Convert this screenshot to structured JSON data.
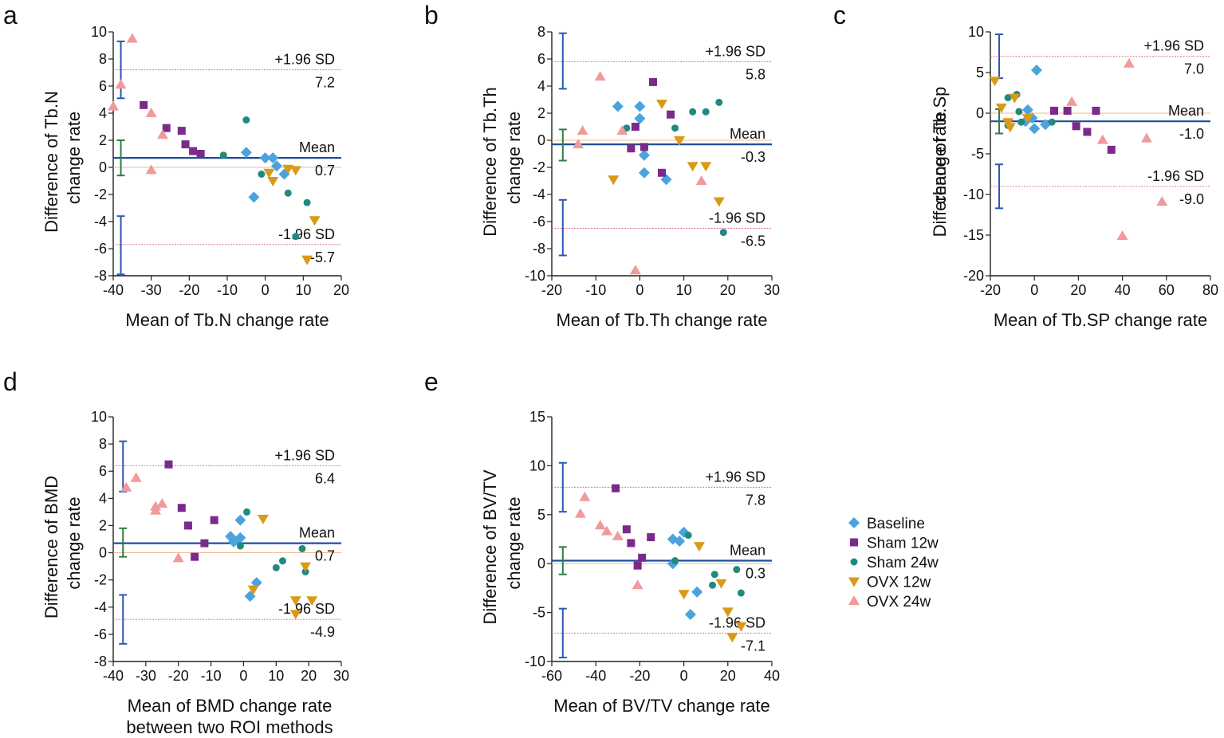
{
  "chart_data": [
    {
      "panel": "a",
      "type": "scatter",
      "title": "",
      "xlabel": "Mean of Tb.N change rate",
      "xlabel2": "",
      "ylabel": "Difference of Tb.N",
      "ylabel2": "change rate",
      "xlim": [
        -40,
        20
      ],
      "ylim": [
        -8,
        10
      ],
      "xticks": [
        -40,
        -30,
        -20,
        -10,
        0,
        10,
        20
      ],
      "yticks": [
        -8,
        -6,
        -4,
        -2,
        0,
        2,
        4,
        6,
        8,
        10
      ],
      "xtick_labels": [
        "-40",
        "-30",
        "-20",
        "-10",
        "0",
        "10",
        "20"
      ],
      "ytick_labels": [
        "-8",
        "-6",
        "-4",
        "-2",
        "0",
        "2",
        "4",
        "6",
        "8",
        "10"
      ],
      "upper": 7.2,
      "mean": 0.7,
      "lower": -5.7,
      "upper_label": "+1.96 SD",
      "mean_label": "Mean",
      "lower_label": "-1.96 SD",
      "upper_value": "7.2",
      "mean_value": "0.7",
      "lower_value": "-5.7",
      "ci_x": -38,
      "ci_upper": [
        5.1,
        9.3
      ],
      "ci_mean": [
        -0.6,
        2.0
      ],
      "ci_lower": [
        -7.9,
        -3.6
      ],
      "series": [
        {
          "name": "Baseline",
          "points": [
            [
              -5,
              1.1
            ],
            [
              -3,
              -2.2
            ],
            [
              0,
              0.7
            ],
            [
              2,
              0.7
            ],
            [
              3,
              0.1
            ],
            [
              5,
              -0.5
            ]
          ]
        },
        {
          "name": "Sham 12w",
          "points": [
            [
              -32,
              4.6
            ],
            [
              -26,
              2.9
            ],
            [
              -22,
              2.7
            ],
            [
              -21,
              1.7
            ],
            [
              -19,
              1.2
            ],
            [
              -17,
              1.0
            ]
          ]
        },
        {
          "name": "Sham 24w",
          "points": [
            [
              -11,
              0.9
            ],
            [
              -5,
              3.5
            ],
            [
              -1,
              -0.5
            ],
            [
              6,
              -1.9
            ],
            [
              8,
              -5.1
            ],
            [
              11,
              -2.6
            ]
          ]
        },
        {
          "name": "OVX  12w",
          "points": [
            [
              1,
              -0.4
            ],
            [
              2,
              -1.0
            ],
            [
              6,
              -0.1
            ],
            [
              8,
              -0.2
            ],
            [
              11,
              -6.8
            ],
            [
              13,
              -3.9
            ]
          ]
        },
        {
          "name": "OVX  24w",
          "points": [
            [
              -38,
              6.1
            ],
            [
              -35,
              9.5
            ],
            [
              -40,
              4.5
            ],
            [
              -30,
              4.0
            ],
            [
              -27,
              2.4
            ],
            [
              -30,
              -0.2
            ]
          ]
        }
      ]
    },
    {
      "panel": "b",
      "type": "scatter",
      "title": "",
      "xlabel": "Mean of Tb.Th change rate",
      "xlabel2": "",
      "ylabel": "Difference of Tb.Th",
      "ylabel2": "change  rate",
      "xlim": [
        -20,
        30
      ],
      "ylim": [
        -10,
        8
      ],
      "xticks": [
        -20,
        -10,
        0,
        10,
        20,
        30
      ],
      "yticks": [
        -10,
        -8,
        -6,
        -4,
        -2,
        0,
        2,
        4,
        6,
        8
      ],
      "xtick_labels": [
        "-20",
        "-10",
        "0",
        "10",
        "20",
        "30"
      ],
      "ytick_labels": [
        "-10",
        "-8",
        "-6",
        "-4",
        "-2",
        "0",
        "2",
        "4",
        "6",
        "8"
      ],
      "upper": 5.8,
      "mean": -0.3,
      "lower": -6.5,
      "upper_label": "+1.96 SD",
      "mean_label": "Mean",
      "lower_label": "-1.96 SD",
      "upper_value": "5.8",
      "mean_value": "-0.3",
      "lower_value": "-6.5",
      "ci_x": -17.5,
      "ci_upper": [
        3.8,
        7.9
      ],
      "ci_mean": [
        -1.5,
        0.8
      ],
      "ci_lower": [
        -8.5,
        -4.4
      ],
      "series": [
        {
          "name": "Baseline",
          "points": [
            [
              -5,
              2.5
            ],
            [
              0,
              2.5
            ],
            [
              0,
              1.6
            ],
            [
              1,
              -1.1
            ],
            [
              1,
              -2.4
            ],
            [
              6,
              -2.9
            ]
          ]
        },
        {
          "name": "Sham 12w",
          "points": [
            [
              -2,
              -0.6
            ],
            [
              -1,
              1.0
            ],
            [
              1,
              -0.5
            ],
            [
              3,
              4.3
            ],
            [
              5,
              -2.4
            ],
            [
              7,
              1.9
            ]
          ]
        },
        {
          "name": "Sham 24w",
          "points": [
            [
              -3,
              0.9
            ],
            [
              8,
              0.9
            ],
            [
              12,
              2.1
            ],
            [
              15,
              2.1
            ],
            [
              18,
              2.8
            ],
            [
              19,
              -6.8
            ]
          ]
        },
        {
          "name": "OVX  12w",
          "points": [
            [
              -6,
              -2.9
            ],
            [
              5,
              2.7
            ],
            [
              9,
              0.0
            ],
            [
              12,
              -1.9
            ],
            [
              15,
              -1.9
            ],
            [
              18,
              -4.5
            ]
          ]
        },
        {
          "name": "OVX  24w",
          "points": [
            [
              -13,
              0.7
            ],
            [
              -14,
              -0.3
            ],
            [
              -9,
              4.7
            ],
            [
              -4,
              0.7
            ],
            [
              14,
              -3.0
            ],
            [
              -1,
              -9.6
            ]
          ]
        }
      ]
    },
    {
      "panel": "c",
      "type": "scatter",
      "title": "",
      "xlabel": "Mean of Tb.SP change rate",
      "xlabel2": "",
      "ylabel": "Difference of Tb.Sp",
      "ylabel2": "change  rate",
      "xlim": [
        -20,
        80
      ],
      "ylim": [
        -20,
        10
      ],
      "xticks": [
        -20,
        0,
        20,
        40,
        60,
        80
      ],
      "yticks": [
        -20,
        -15,
        -10,
        -5,
        0,
        5,
        10
      ],
      "xtick_labels": [
        "-20",
        "0",
        "20",
        "40",
        "60",
        "80"
      ],
      "ytick_labels": [
        "-20",
        "-15",
        "-10",
        "-5",
        "0",
        "5",
        "10"
      ],
      "upper": 7.0,
      "mean": -1.0,
      "lower": -9.0,
      "upper_label": "+1.96 SD",
      "mean_label": "Mean",
      "lower_label": "-1.96 SD",
      "upper_value": "7.0",
      "mean_value": "-1.0",
      "lower_value": "-9.0",
      "ci_x": -16,
      "ci_upper": [
        4.3,
        9.7
      ],
      "ci_mean": [
        -2.5,
        0.5
      ],
      "ci_lower": [
        -11.7,
        -6.3
      ],
      "series": [
        {
          "name": "Baseline",
          "points": [
            [
              -4,
              -1.0
            ],
            [
              -3,
              0.4
            ],
            [
              -1,
              -0.6
            ],
            [
              0,
              -1.9
            ],
            [
              1,
              5.3
            ],
            [
              5,
              -1.4
            ]
          ]
        },
        {
          "name": "Sham 12w",
          "points": [
            [
              9,
              0.3
            ],
            [
              15,
              0.3
            ],
            [
              19,
              -1.6
            ],
            [
              24,
              -2.3
            ],
            [
              28,
              0.3
            ],
            [
              35,
              -4.5
            ]
          ]
        },
        {
          "name": "Sham 24w",
          "points": [
            [
              -12,
              -1.5
            ],
            [
              -12,
              1.9
            ],
            [
              -8,
              2.3
            ],
            [
              -7,
              0.2
            ],
            [
              -6,
              -1.1
            ],
            [
              8,
              -1.1
            ]
          ]
        },
        {
          "name": "OVX  12w",
          "points": [
            [
              -18,
              4.0
            ],
            [
              -15,
              0.7
            ],
            [
              -12,
              -1.1
            ],
            [
              -11,
              -1.7
            ],
            [
              -9,
              1.9
            ],
            [
              -3,
              -0.6
            ]
          ]
        },
        {
          "name": "OVX  24w",
          "points": [
            [
              17,
              1.4
            ],
            [
              31,
              -3.3
            ],
            [
              40,
              -15.1
            ],
            [
              43,
              6.1
            ],
            [
              51,
              -3.1
            ],
            [
              58,
              -10.9
            ]
          ]
        }
      ]
    },
    {
      "panel": "d",
      "type": "scatter",
      "title": "",
      "xlabel": "Mean of BMD change rate",
      "xlabel2": "between two ROI methods",
      "ylabel": "Difference of BMD",
      "ylabel2": "change rate",
      "xlim": [
        -40,
        30
      ],
      "ylim": [
        -8,
        10
      ],
      "xticks": [
        -40,
        -30,
        -20,
        -10,
        0,
        10,
        20,
        30
      ],
      "yticks": [
        -8,
        -6,
        -4,
        -2,
        0,
        2,
        4,
        6,
        8,
        10
      ],
      "xtick_labels": [
        "-40",
        "-30",
        "-20",
        "-10",
        "0",
        "10",
        "20",
        "30"
      ],
      "ytick_labels": [
        "-8",
        "-6",
        "-4",
        "-2",
        "0",
        "2",
        "4",
        "6",
        "8",
        "10"
      ],
      "upper": 6.4,
      "mean": 0.7,
      "lower": -4.9,
      "upper_label": "+1.96 SD",
      "mean_label": "Mean",
      "lower_label": "-1.96 SD",
      "upper_value": "6.4",
      "mean_value": "0.7",
      "lower_value": "-4.9",
      "ci_x": -37,
      "ci_upper": [
        4.5,
        8.2
      ],
      "ci_mean": [
        -0.3,
        1.8
      ],
      "ci_lower": [
        -6.7,
        -3.1
      ],
      "series": [
        {
          "name": "Baseline",
          "points": [
            [
              -4,
              1.2
            ],
            [
              -3,
              0.8
            ],
            [
              -1,
              1.1
            ],
            [
              -1,
              2.4
            ],
            [
              2,
              -3.2
            ],
            [
              4,
              -2.2
            ]
          ]
        },
        {
          "name": "Sham 12w",
          "points": [
            [
              -23,
              6.5
            ],
            [
              -19,
              3.3
            ],
            [
              -17,
              2.0
            ],
            [
              -12,
              0.7
            ],
            [
              -9,
              2.4
            ],
            [
              -15,
              -0.3
            ]
          ]
        },
        {
          "name": "Sham 24w",
          "points": [
            [
              -1,
              0.5
            ],
            [
              1,
              3.0
            ],
            [
              10,
              -1.1
            ],
            [
              12,
              -0.6
            ],
            [
              18,
              0.3
            ],
            [
              19,
              -1.4
            ]
          ]
        },
        {
          "name": "OVX  12w",
          "points": [
            [
              3,
              -2.7
            ],
            [
              6,
              2.5
            ],
            [
              16,
              -3.5
            ],
            [
              16,
              -4.5
            ],
            [
              19,
              -1.0
            ],
            [
              21,
              -3.5
            ]
          ]
        },
        {
          "name": "OVX  24w",
          "points": [
            [
              -36,
              4.8
            ],
            [
              -33,
              5.5
            ],
            [
              -27,
              3.4
            ],
            [
              -27,
              3.1
            ],
            [
              -25,
              3.6
            ],
            [
              -20,
              -0.4
            ]
          ]
        }
      ]
    },
    {
      "panel": "e",
      "type": "scatter",
      "title": "",
      "xlabel": "Mean of BV/TV change rate",
      "xlabel2": "",
      "ylabel": "Difference of BV/TV",
      "ylabel2": "change  rate",
      "xlim": [
        -60,
        40
      ],
      "ylim": [
        -10,
        15
      ],
      "xticks": [
        -60,
        -40,
        -20,
        0,
        20,
        40
      ],
      "yticks": [
        -10,
        -5,
        0,
        5,
        10,
        15
      ],
      "xtick_labels": [
        "-60",
        "-40",
        "-20",
        "0",
        "20",
        "40"
      ],
      "ytick_labels": [
        "-10",
        "-5",
        "0",
        "5",
        "10",
        "15"
      ],
      "upper": 7.8,
      "mean": 0.3,
      "lower": -7.1,
      "upper_label": "+1.96 SD",
      "mean_label": "Mean",
      "lower_label": "-1.96 SD",
      "upper_value": "7.8",
      "mean_value": "0.3",
      "lower_value": "-7.1",
      "ci_x": -55,
      "ci_upper": [
        5.3,
        10.3
      ],
      "ci_mean": [
        -1.1,
        1.7
      ],
      "ci_lower": [
        -9.6,
        -4.6
      ],
      "series": [
        {
          "name": "Baseline",
          "points": [
            [
              -5,
              2.5
            ],
            [
              -5,
              0.0
            ],
            [
              -2,
              2.3
            ],
            [
              0,
              3.2
            ],
            [
              3,
              -5.2
            ],
            [
              6,
              -2.9
            ]
          ]
        },
        {
          "name": "Sham 12w",
          "points": [
            [
              -31,
              7.7
            ],
            [
              -26,
              3.5
            ],
            [
              -24,
              2.1
            ],
            [
              -15,
              2.7
            ],
            [
              -19,
              0.6
            ],
            [
              -21,
              -0.2
            ]
          ]
        },
        {
          "name": "Sham 24w",
          "points": [
            [
              -4,
              0.3
            ],
            [
              2,
              2.9
            ],
            [
              14,
              -1.1
            ],
            [
              13,
              -2.2
            ],
            [
              24,
              -0.6
            ],
            [
              26,
              -3.0
            ]
          ]
        },
        {
          "name": "OVX  12w",
          "points": [
            [
              0,
              -3.1
            ],
            [
              7,
              1.8
            ],
            [
              17,
              -2.0
            ],
            [
              20,
              -4.9
            ],
            [
              22,
              -7.5
            ],
            [
              26,
              -6.4
            ]
          ]
        },
        {
          "name": "OVX  24w",
          "points": [
            [
              -47,
              5.1
            ],
            [
              -45,
              6.8
            ],
            [
              -38,
              3.9
            ],
            [
              -35,
              3.3
            ],
            [
              -30,
              2.8
            ],
            [
              -21,
              -2.2
            ]
          ]
        }
      ]
    }
  ],
  "panel_labels": [
    "a",
    "b",
    "c",
    "d",
    "e"
  ],
  "legend": [
    {
      "name": "Baseline",
      "marker": "diamond",
      "color": "#4aa3dd"
    },
    {
      "name": "Sham 12w",
      "marker": "square",
      "color": "#7b2a8c"
    },
    {
      "name": "Sham 24w",
      "marker": "circle",
      "color": "#1f8a80"
    },
    {
      "name": "OVX  12w",
      "marker": "triangle-down",
      "color": "#d89a18"
    },
    {
      "name": "OVX  24w",
      "marker": "triangle-up",
      "color": "#f2999b"
    }
  ],
  "colors": {
    "mean_line": "#1f4e9a",
    "sd_line": "#d77a86",
    "zero_line": "#f2b88e",
    "ci_outer": "#2b57b3",
    "ci_mean": "#2e7d45",
    "axis": "#222222"
  }
}
